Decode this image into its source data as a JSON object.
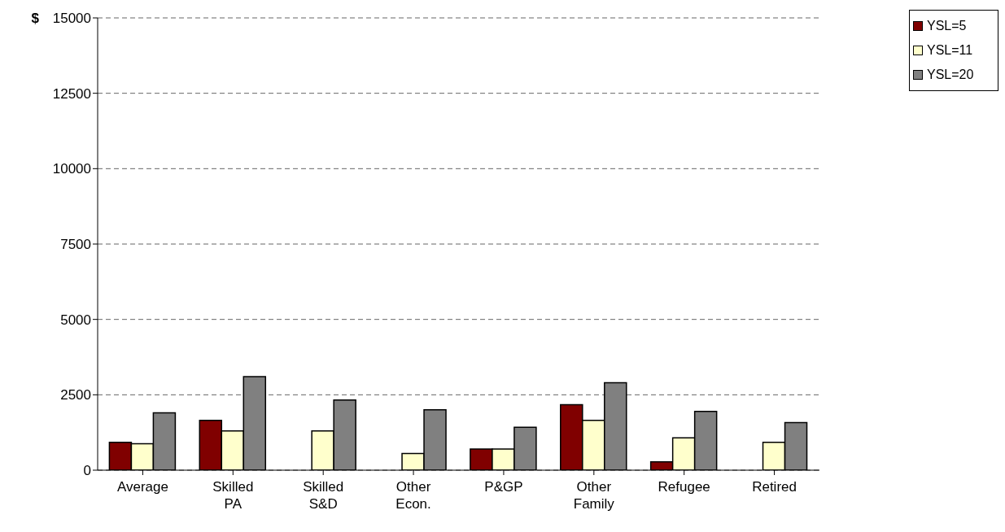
{
  "chart_data": {
    "type": "bar",
    "ylabel": "$",
    "categories": [
      "Average",
      "Skilled PA",
      "Skilled S&D",
      "Other Econ.",
      "P&GP",
      "Other Family",
      "Refugee",
      "Retired"
    ],
    "series": [
      {
        "name": "YSL=5",
        "color": "#800000",
        "values": [
          925,
          1650,
          null,
          null,
          700,
          2175,
          275,
          null
        ]
      },
      {
        "name": "YSL=11",
        "color": "#ffffcc",
        "values": [
          875,
          1300,
          1300,
          550,
          700,
          1650,
          1075,
          925
        ]
      },
      {
        "name": "YSL=20",
        "color": "#808080",
        "values": [
          1900,
          3100,
          2325,
          2000,
          1425,
          2900,
          1950,
          1575
        ]
      }
    ],
    "ylim": [
      0,
      15000
    ],
    "yticks": [
      0,
      2500,
      5000,
      7500,
      10000,
      12500,
      15000
    ],
    "grid": "y",
    "legend": "top right"
  }
}
